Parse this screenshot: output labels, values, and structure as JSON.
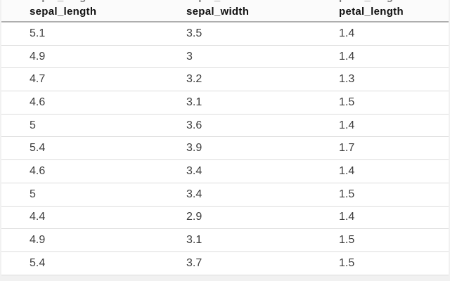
{
  "page": {
    "background_color": "#f1f1f1"
  },
  "chart_data": {
    "type": "table",
    "columns": [
      "sepal_length",
      "sepal_width",
      "petal_length"
    ],
    "rows": [
      [
        "5.1",
        "3.5",
        "1.4"
      ],
      [
        "4.9",
        "3",
        "1.4"
      ],
      [
        "4.7",
        "3.2",
        "1.3"
      ],
      [
        "4.6",
        "3.1",
        "1.5"
      ],
      [
        "5",
        "3.6",
        "1.4"
      ],
      [
        "5.4",
        "3.9",
        "1.7"
      ],
      [
        "4.6",
        "3.4",
        "1.4"
      ],
      [
        "5",
        "3.4",
        "1.5"
      ],
      [
        "4.4",
        "2.9",
        "1.4"
      ],
      [
        "4.9",
        "3.1",
        "1.5"
      ],
      [
        "5.4",
        "3.7",
        "1.5"
      ]
    ],
    "layout": {
      "grid": "horizontal-row-separators",
      "legend": "none",
      "header_style": "bold"
    }
  },
  "colors": {
    "page_bg": "#f1f1f1",
    "table_bg": "#ffffff",
    "header_bg": "#fbfbfb",
    "header_text": "#111111",
    "cell_text": "#3c3c3c",
    "header_border": "#aeaeae",
    "row_border": "#dcdcdc"
  }
}
